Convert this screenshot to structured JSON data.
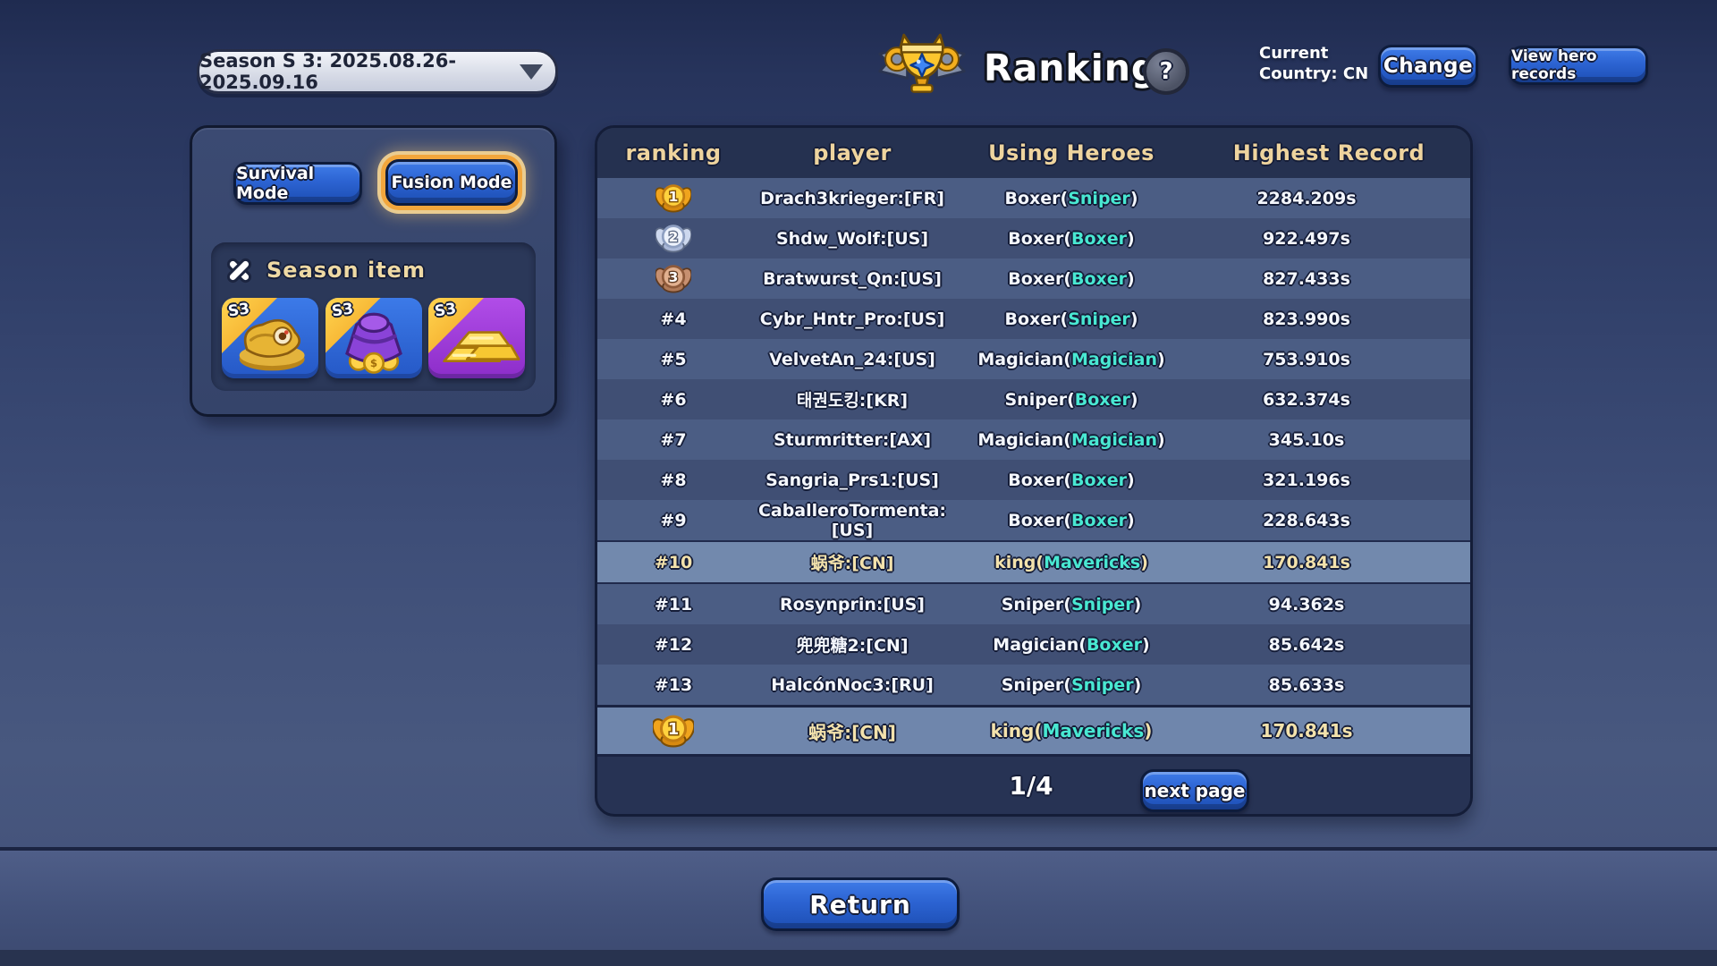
{
  "header": {
    "season_selector": "Season S 3: 2025.08.26- 2025.09.16",
    "title": "Ranking",
    "help_label": "?",
    "country_line1": "Current",
    "country_line2": "Country: CN",
    "change_button": "Change",
    "view_hero_records_button": "View hero records",
    "trophy_icon": "cat-trophy-icon"
  },
  "modes": {
    "survival_label": "Survival Mode",
    "fusion_label": "Fusion Mode",
    "selected": "Fusion Mode"
  },
  "season_item": {
    "title": "Season item",
    "icon": "crossed-swords-icon",
    "items": [
      {
        "badge": "S3",
        "icon": "golden-idol-icon",
        "bg": "#2f6adf"
      },
      {
        "badge": "S3",
        "icon": "coin-pouch-icon",
        "bg": "#2f6adf"
      },
      {
        "badge": "S3",
        "icon": "gold-bars-icon",
        "bg": "#a03ee0"
      }
    ]
  },
  "table": {
    "columns": [
      "ranking",
      "player",
      "Using Heroes",
      "Highest Record"
    ],
    "rows": [
      {
        "medal": "gold",
        "rank": "1",
        "player": "Drach3krieger:[FR]",
        "hero": "Boxer",
        "hero_sub": "Sniper",
        "record": "2284.209s",
        "highlight": false
      },
      {
        "medal": "silver",
        "rank": "2",
        "player": "Shdw_Wolf:[US]",
        "hero": "Boxer",
        "hero_sub": "Boxer",
        "record": "922.497s",
        "highlight": false
      },
      {
        "medal": "bronze",
        "rank": "3",
        "player": "Bratwurst_Qn:[US]",
        "hero": "Boxer",
        "hero_sub": "Boxer",
        "record": "827.433s",
        "highlight": false
      },
      {
        "medal": null,
        "rank": "#4",
        "player": "Cybr_Hntr_Pro:[US]",
        "hero": "Boxer",
        "hero_sub": "Sniper",
        "record": "823.990s",
        "highlight": false
      },
      {
        "medal": null,
        "rank": "#5",
        "player": "VelvetAn_24:[US]",
        "hero": "Magician",
        "hero_sub": "Magician",
        "record": "753.910s",
        "highlight": false
      },
      {
        "medal": null,
        "rank": "#6",
        "player": "태권도킹:[KR]",
        "hero": "Sniper",
        "hero_sub": "Boxer",
        "record": "632.374s",
        "highlight": false
      },
      {
        "medal": null,
        "rank": "#7",
        "player": "Sturmritter:[AX]",
        "hero": "Magician",
        "hero_sub": "Magician",
        "record": "345.10s",
        "highlight": false
      },
      {
        "medal": null,
        "rank": "#8",
        "player": "Sangria_Prs1:[US]",
        "hero": "Boxer",
        "hero_sub": "Boxer",
        "record": "321.196s",
        "highlight": false
      },
      {
        "medal": null,
        "rank": "#9",
        "player": "CaballeroTormenta:[US]",
        "hero": "Boxer",
        "hero_sub": "Boxer",
        "record": "228.643s",
        "highlight": false
      },
      {
        "medal": null,
        "rank": "#10",
        "player": "蜗爷:[CN]",
        "hero": "king",
        "hero_sub": "Mavericks",
        "record": "170.841s",
        "highlight": true
      },
      {
        "medal": null,
        "rank": "#11",
        "player": "Rosynprin:[US]",
        "hero": "Sniper",
        "hero_sub": "Sniper",
        "record": "94.362s",
        "highlight": false
      },
      {
        "medal": null,
        "rank": "#12",
        "player": "兜兜糖2:[CN]",
        "hero": "Magician",
        "hero_sub": "Boxer",
        "record": "85.642s",
        "highlight": false
      },
      {
        "medal": null,
        "rank": "#13",
        "player": "HalcónNoc3:[RU]",
        "hero": "Sniper",
        "hero_sub": "Sniper",
        "record": "85.633s",
        "highlight": false
      }
    ],
    "pinned_row": {
      "medal": "gold",
      "rank": "1",
      "player": "蜗爷:[CN]",
      "hero": "king",
      "hero_sub": "Mavericks",
      "record": "170.841s",
      "highlight": true
    },
    "page_indicator": "1/4",
    "next_page_button": "next page"
  },
  "footer": {
    "return_button": "Return"
  },
  "colors": {
    "header_gold": "#eed49e",
    "hero_cyan": "#49e8d2",
    "highlight_text": "#f3e2ac",
    "button_blue": "#2c63d2",
    "table_bg": "#273354",
    "row_light": "#4b5d84",
    "row_dark": "#404f74",
    "row_highlight": "#7289ad",
    "fusion_glow": "#f2a63c"
  }
}
